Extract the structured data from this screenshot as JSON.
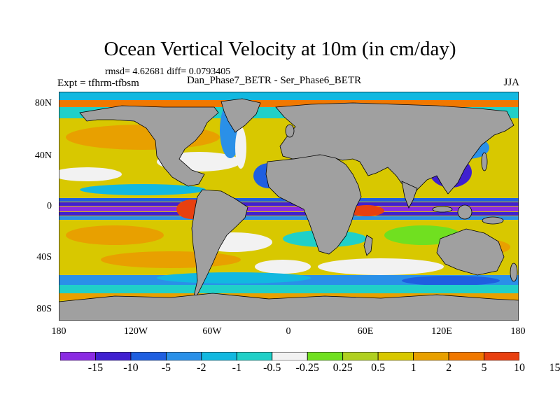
{
  "title": "Ocean Vertical Velocity at 10m (in cm/day)",
  "stats": "rmsd= 4.62681 diff= 0.0793405",
  "expt_label": "Expt = tfhrm-tfbsm",
  "comparison": "Dan_Phase7_BETR - Ser_Phase6_BETR",
  "season": "JJA",
  "lat_ticks": [
    "80N",
    "40N",
    "0",
    "40S",
    "80S"
  ],
  "lon_ticks": [
    "180",
    "120W",
    "60W",
    "0",
    "60E",
    "120E",
    "180"
  ],
  "colorbar": {
    "colors": [
      "#8a2be2",
      "#4020d0",
      "#1f5fe0",
      "#2a90e8",
      "#12b8e0",
      "#20d0c8",
      "#f2f2f2",
      "#70e020",
      "#b0d020",
      "#d8c800",
      "#e8a000",
      "#f07800",
      "#e84010"
    ],
    "labels": [
      "-15",
      "-10",
      "-5",
      "-2",
      "-1",
      "-0.5",
      "-0.25",
      "0.25",
      "0.5",
      "1",
      "2",
      "5",
      "10",
      "15"
    ]
  },
  "colors": {
    "land": "#a0a0a0",
    "ocean_base": "#d8c800"
  }
}
